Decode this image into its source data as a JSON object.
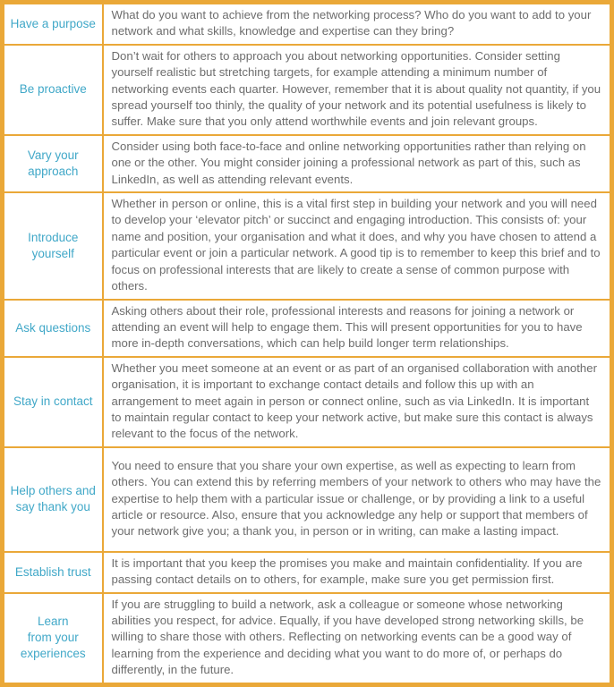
{
  "colors": {
    "border-color": "#EAA838",
    "label-color": "#41A8C8",
    "text-color": "#6D6D6D",
    "bg-color": "#FFFFFF"
  },
  "table": {
    "rows": [
      {
        "label": "Have a purpose",
        "text": "What do you want to achieve from the networking process? Who do you want to add to your network and what skills, knowledge and expertise can they bring?"
      },
      {
        "label": "Be proactive",
        "text": "Don’t wait for others to approach you about networking opportunities. Consider setting yourself realistic but stretching targets, for example attending a minimum number of networking events each quarter. However, remember that it is about quality not quantity, if you spread yourself too thinly, the quality of your network and its potential usefulness is likely to suffer. Make sure that you only attend worthwhile events and join relevant groups."
      },
      {
        "label": "Vary your\napproach",
        "text": "Consider using both face-to-face and online networking opportunities rather than relying on one or the other. You might consider joining a professional network as part of this, such as LinkedIn, as well as attending relevant events."
      },
      {
        "label": "Introduce\nyourself",
        "text": "Whether in person or online, this is a vital first step in building your network and you will need to develop your ‘elevator pitch’ or succinct and engaging introduction. This consists of: your name and position, your organisation and what it does, and why you have chosen to attend a particular event or join a particular network. A good tip is to remember to keep this brief and to focus on professional interests that are likely to create a sense of common purpose with others."
      },
      {
        "label": "Ask questions",
        "text": "Asking others about their role, professional interests and reasons for joining a network or attending an event will help to engage them. This will present opportunities for you to have more in-depth conversations, which can help build longer term relationships."
      },
      {
        "label": "Stay in contact",
        "text": "Whether you meet someone at an event or as part of an organised collaboration with another organisation, it is important to exchange contact details and follow this up with an arrangement to meet again in person or connect online, such as via LinkedIn. It is important to maintain regular contact to keep your network active, but make sure this contact is always relevant to the focus of the network."
      },
      {
        "label": "Help others and\nsay thank you",
        "text": "You need to ensure that you share your own expertise, as well as expecting to learn from others. You can extend this by referring members of your network to others who may have the expertise to help them with a particular issue or challenge, or by providing a link to a useful article or resource. Also, ensure that you acknowledge any help or support that members of your network give you; a thank you, in person or in writing, can make a lasting impact."
      },
      {
        "label": "Establish trust",
        "text": "It is important that you keep the promises you make and maintain confidentiality. If you are passing contact details on to others, for example, make sure you get permission first."
      },
      {
        "label": "Learn\nfrom your\nexperiences",
        "text": "If you are struggling to build a network, ask a colleague or someone whose networking abilities you respect, for advice. Equally, if you have developed strong networking skills, be willing to share those with others. Reflecting on networking events can be a good way of learning from the experience and deciding what you want to do more of, or perhaps do differently, in the future."
      }
    ]
  }
}
